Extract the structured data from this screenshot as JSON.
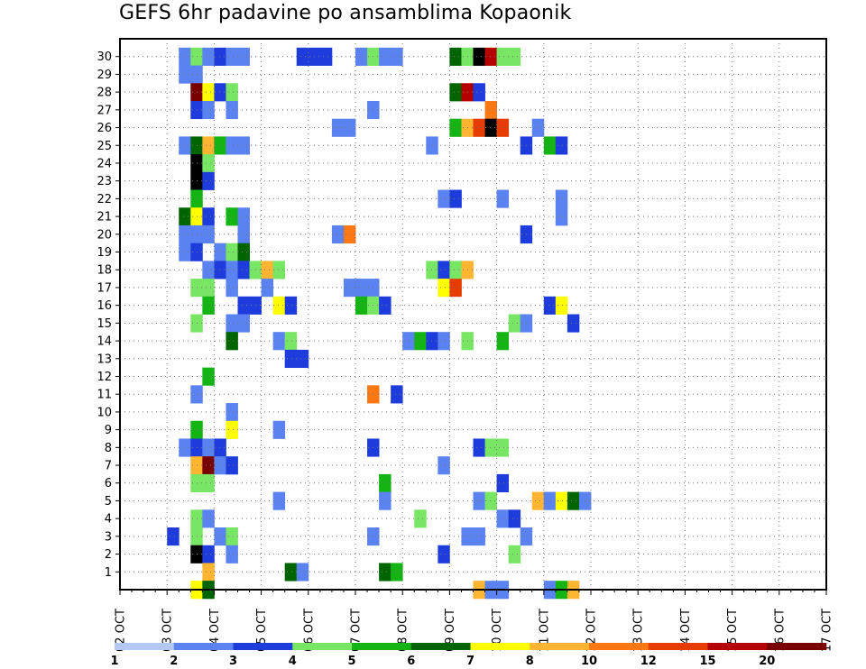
{
  "chart_data": {
    "type": "heatmap",
    "title": "GEFS 6hr padavine po ansamblima Kopaonik",
    "x_tick_labels": [
      "02 OCT",
      "03 OCT",
      "04 OCT",
      "05 OCT",
      "06 OCT",
      "07 OCT",
      "08 OCT",
      "09 OCT",
      "10 OCT",
      "11 OCT",
      "12 OCT",
      "13 OCT",
      "14 OCT",
      "15 OCT",
      "16 OCT",
      "17 OCT"
    ],
    "x_unit": "6-hour step from 02 OCT 00Z",
    "xlim": [
      0,
      60
    ],
    "y_tick_labels": [
      "1",
      "2",
      "3",
      "4",
      "5",
      "6",
      "7",
      "8",
      "9",
      "10",
      "11",
      "12",
      "13",
      "14",
      "15",
      "16",
      "17",
      "18",
      "19",
      "20",
      "21",
      "22",
      "23",
      "24",
      "25",
      "26",
      "27",
      "28",
      "29",
      "30"
    ],
    "ylim": [
      0,
      30
    ],
    "grid": true,
    "colorbar": {
      "labels": [
        "1",
        "2",
        "3",
        "4",
        "5",
        "6",
        "7",
        "8",
        "10",
        "12",
        "15",
        "20"
      ],
      "colors": [
        "#b4c8f5",
        "#5a82f0",
        "#1e3cdc",
        "#78e664",
        "#14b414",
        "#006400",
        "#ffff00",
        "#ffb432",
        "#ff7814",
        "#e63c00",
        "#b40000",
        "#780000"
      ]
    },
    "cells": [
      [
        5,
        30,
        1
      ],
      [
        6,
        30,
        3
      ],
      [
        7,
        30,
        1
      ],
      [
        8,
        30,
        2
      ],
      [
        9,
        30,
        1
      ],
      [
        10,
        30,
        1
      ],
      [
        15,
        30,
        2
      ],
      [
        16,
        30,
        2
      ],
      [
        17,
        30,
        2
      ],
      [
        20,
        30,
        1
      ],
      [
        21,
        30,
        3
      ],
      [
        22,
        30,
        1
      ],
      [
        23,
        30,
        1
      ],
      [
        28,
        30,
        5
      ],
      [
        29,
        30,
        3
      ],
      [
        30,
        30,
        12
      ],
      [
        31,
        30,
        10
      ],
      [
        32,
        30,
        3
      ],
      [
        33,
        30,
        3
      ],
      [
        5,
        29,
        1
      ],
      [
        6,
        29,
        1
      ],
      [
        6,
        28,
        11
      ],
      [
        7,
        28,
        6
      ],
      [
        8,
        28,
        2
      ],
      [
        9,
        28,
        3
      ],
      [
        28,
        28,
        5
      ],
      [
        29,
        28,
        10
      ],
      [
        30,
        28,
        2
      ],
      [
        6,
        27,
        2
      ],
      [
        7,
        27,
        1
      ],
      [
        9,
        27,
        1
      ],
      [
        21,
        27,
        1
      ],
      [
        31,
        27,
        8
      ],
      [
        18,
        26,
        1
      ],
      [
        19,
        26,
        1
      ],
      [
        28,
        26,
        4
      ],
      [
        29,
        26,
        7
      ],
      [
        30,
        26,
        9
      ],
      [
        31,
        26,
        12
      ],
      [
        32,
        26,
        9
      ],
      [
        35,
        26,
        1
      ],
      [
        5,
        25,
        1
      ],
      [
        6,
        25,
        5
      ],
      [
        7,
        25,
        7
      ],
      [
        8,
        25,
        4
      ],
      [
        9,
        25,
        1
      ],
      [
        10,
        25,
        1
      ],
      [
        26,
        25,
        1
      ],
      [
        34,
        25,
        2
      ],
      [
        36,
        25,
        4
      ],
      [
        37,
        25,
        2
      ],
      [
        6,
        24,
        12
      ],
      [
        7,
        24,
        3
      ],
      [
        6,
        23,
        12
      ],
      [
        7,
        23,
        2
      ],
      [
        6,
        22,
        4
      ],
      [
        27,
        22,
        1
      ],
      [
        28,
        22,
        2
      ],
      [
        32,
        22,
        1
      ],
      [
        37,
        22,
        1
      ],
      [
        5,
        21,
        5
      ],
      [
        6,
        21,
        6
      ],
      [
        7,
        21,
        2
      ],
      [
        9,
        21,
        4
      ],
      [
        10,
        21,
        1
      ],
      [
        37,
        21,
        1
      ],
      [
        5,
        20,
        1
      ],
      [
        6,
        20,
        1
      ],
      [
        7,
        20,
        1
      ],
      [
        10,
        20,
        1
      ],
      [
        18,
        20,
        1
      ],
      [
        19,
        20,
        8
      ],
      [
        34,
        20,
        2
      ],
      [
        5,
        19,
        1
      ],
      [
        6,
        19,
        2
      ],
      [
        8,
        19,
        1
      ],
      [
        9,
        19,
        3
      ],
      [
        10,
        19,
        5
      ],
      [
        7,
        18,
        1
      ],
      [
        8,
        18,
        2
      ],
      [
        9,
        18,
        1
      ],
      [
        10,
        18,
        2
      ],
      [
        11,
        18,
        3
      ],
      [
        12,
        18,
        7
      ],
      [
        13,
        18,
        3
      ],
      [
        26,
        18,
        3
      ],
      [
        27,
        18,
        2
      ],
      [
        28,
        18,
        3
      ],
      [
        29,
        18,
        7
      ],
      [
        6,
        17,
        3
      ],
      [
        7,
        17,
        3
      ],
      [
        9,
        17,
        1
      ],
      [
        12,
        17,
        1
      ],
      [
        19,
        17,
        1
      ],
      [
        20,
        17,
        1
      ],
      [
        21,
        17,
        1
      ],
      [
        27,
        17,
        6
      ],
      [
        28,
        17,
        9
      ],
      [
        7,
        16,
        4
      ],
      [
        10,
        16,
        2
      ],
      [
        11,
        16,
        2
      ],
      [
        13,
        16,
        6
      ],
      [
        14,
        16,
        2
      ],
      [
        20,
        16,
        4
      ],
      [
        21,
        16,
        3
      ],
      [
        22,
        16,
        2
      ],
      [
        36,
        16,
        2
      ],
      [
        37,
        16,
        6
      ],
      [
        6,
        15,
        3
      ],
      [
        9,
        15,
        1
      ],
      [
        10,
        15,
        1
      ],
      [
        33,
        15,
        3
      ],
      [
        34,
        15,
        1
      ],
      [
        38,
        15,
        2
      ],
      [
        9,
        14,
        5
      ],
      [
        13,
        14,
        1
      ],
      [
        14,
        14,
        3
      ],
      [
        24,
        14,
        1
      ],
      [
        25,
        14,
        4
      ],
      [
        26,
        14,
        2
      ],
      [
        27,
        14,
        1
      ],
      [
        29,
        14,
        3
      ],
      [
        32,
        14,
        4
      ],
      [
        14,
        13,
        2
      ],
      [
        15,
        13,
        2
      ],
      [
        7,
        12,
        4
      ],
      [
        6,
        11,
        1
      ],
      [
        21,
        11,
        8
      ],
      [
        23,
        11,
        2
      ],
      [
        9,
        10,
        1
      ],
      [
        6,
        9,
        4
      ],
      [
        9,
        9,
        6
      ],
      [
        13,
        9,
        1
      ],
      [
        5,
        8,
        1
      ],
      [
        6,
        8,
        2
      ],
      [
        7,
        8,
        1
      ],
      [
        8,
        8,
        2
      ],
      [
        21,
        8,
        2
      ],
      [
        30,
        8,
        2
      ],
      [
        31,
        8,
        3
      ],
      [
        32,
        8,
        3
      ],
      [
        6,
        7,
        7
      ],
      [
        7,
        7,
        11
      ],
      [
        8,
        7,
        1
      ],
      [
        9,
        7,
        2
      ],
      [
        27,
        7,
        1
      ],
      [
        6,
        6,
        3
      ],
      [
        7,
        6,
        3
      ],
      [
        22,
        6,
        4
      ],
      [
        32,
        6,
        2
      ],
      [
        13,
        5,
        1
      ],
      [
        22,
        5,
        1
      ],
      [
        30,
        5,
        1
      ],
      [
        31,
        5,
        3
      ],
      [
        35,
        5,
        7
      ],
      [
        36,
        5,
        1
      ],
      [
        37,
        5,
        6
      ],
      [
        38,
        5,
        5
      ],
      [
        39,
        5,
        1
      ],
      [
        6,
        4,
        3
      ],
      [
        7,
        4,
        1
      ],
      [
        25,
        4,
        3
      ],
      [
        32,
        4,
        1
      ],
      [
        33,
        4,
        2
      ],
      [
        4,
        3,
        2
      ],
      [
        6,
        3,
        3
      ],
      [
        8,
        3,
        1
      ],
      [
        9,
        3,
        3
      ],
      [
        21,
        3,
        1
      ],
      [
        29,
        3,
        1
      ],
      [
        30,
        3,
        1
      ],
      [
        34,
        3,
        1
      ],
      [
        6,
        2,
        12
      ],
      [
        7,
        2,
        2
      ],
      [
        9,
        2,
        1
      ],
      [
        27,
        2,
        2
      ],
      [
        33,
        2,
        3
      ],
      [
        7,
        1,
        7
      ],
      [
        14,
        1,
        5
      ],
      [
        15,
        1,
        1
      ],
      [
        22,
        1,
        5
      ],
      [
        23,
        1,
        4
      ],
      [
        6,
        0,
        6
      ],
      [
        7,
        0,
        5
      ],
      [
        30,
        0,
        7
      ],
      [
        31,
        0,
        1
      ],
      [
        32,
        0,
        1
      ],
      [
        36,
        0,
        1
      ],
      [
        37,
        0,
        4
      ],
      [
        38,
        0,
        7
      ]
    ]
  }
}
